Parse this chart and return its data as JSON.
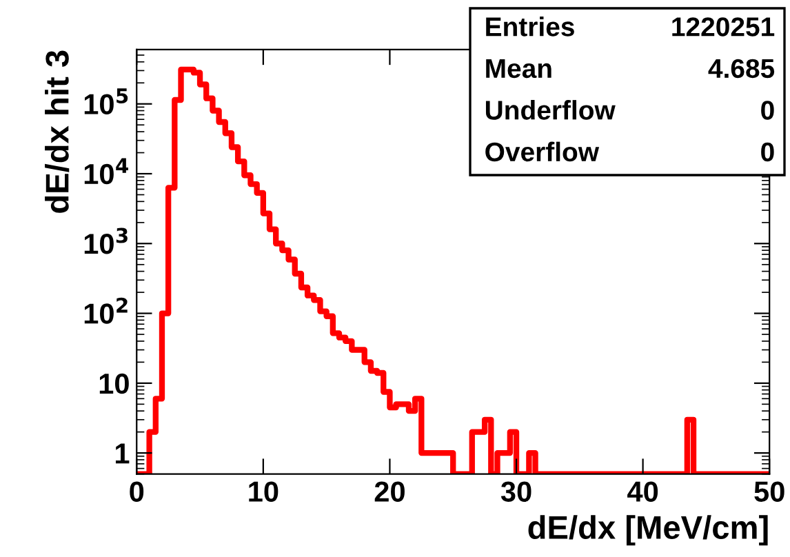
{
  "chart_data": {
    "type": "histogram",
    "xlabel": "dE/dx [MeV/cm]",
    "ylabel": "dE/dx hit 3",
    "color": "#ff0000",
    "bins": [
      0,
      0.5,
      1,
      1.5,
      2,
      2.5,
      3,
      3.5,
      4,
      4.5,
      5,
      5.5,
      6,
      6.5,
      7,
      7.5,
      8,
      8.5,
      9,
      9.5,
      10,
      10.5,
      11,
      11.5,
      12,
      12.5,
      13,
      13.5,
      14,
      14.5,
      15,
      15.5,
      16,
      16.5,
      17,
      17.5,
      18,
      18.5,
      19,
      19.5,
      20,
      20.5,
      21,
      21.5,
      22,
      22.5,
      23,
      23.5,
      24,
      24.5,
      25,
      25.5,
      26,
      26.5,
      27,
      27.5,
      28,
      28.5,
      29,
      29.5,
      30,
      30.5,
      31,
      31.5,
      32,
      32.5,
      33,
      33.5,
      34,
      34.5,
      35,
      35.5,
      36,
      36.5,
      37,
      37.5,
      38,
      38.5,
      39,
      39.5,
      40,
      40.5,
      41,
      41.5,
      42,
      42.5,
      43,
      43.5,
      44,
      44.5,
      45,
      45.5,
      46,
      46.5,
      47,
      47.5,
      48,
      48.5,
      49,
      49.5,
      50
    ],
    "values": [
      null,
      null,
      2,
      6,
      100,
      6300,
      114000,
      310000,
      310000,
      280000,
      190000,
      120000,
      80000,
      55000,
      38000,
      24000,
      15000,
      9500,
      7100,
      5300,
      2700,
      1600,
      1000,
      800,
      590,
      370,
      235,
      180,
      155,
      107,
      91,
      52,
      45,
      40,
      30,
      30,
      20,
      15,
      14,
      7.5,
      4.5,
      5,
      5,
      4,
      6,
      1,
      1,
      1,
      1,
      1,
      null,
      null,
      null,
      2,
      2,
      3,
      null,
      1,
      1,
      2,
      null,
      null,
      1,
      null,
      null,
      null,
      null,
      null,
      null,
      null,
      null,
      null,
      null,
      null,
      null,
      null,
      null,
      null,
      null,
      null,
      null,
      null,
      null,
      null,
      null,
      null,
      null,
      3,
      null,
      null,
      null,
      null,
      null,
      null,
      null,
      null,
      null,
      null,
      null,
      null
    ],
    "log": "y",
    "xlim": [
      0,
      50
    ],
    "ylim": [
      0.5,
      600000
    ],
    "xticks": [
      0,
      10,
      20,
      30,
      40,
      50
    ],
    "yticks": [
      1,
      10,
      {
        "value": 100,
        "label": "10$^{2}$"
      },
      {
        "value": 1000,
        "label": "10$^{3}$"
      },
      {
        "value": 10000,
        "label": "10$^{4}$"
      },
      {
        "value": 100000,
        "label": "10$^{5}$"
      }
    ],
    "annotations": [
      "Entries",
      "1220251",
      "Mean",
      "4.685",
      "Underflow",
      "0",
      "Overflow",
      "0"
    ],
    "grid": false
  }
}
